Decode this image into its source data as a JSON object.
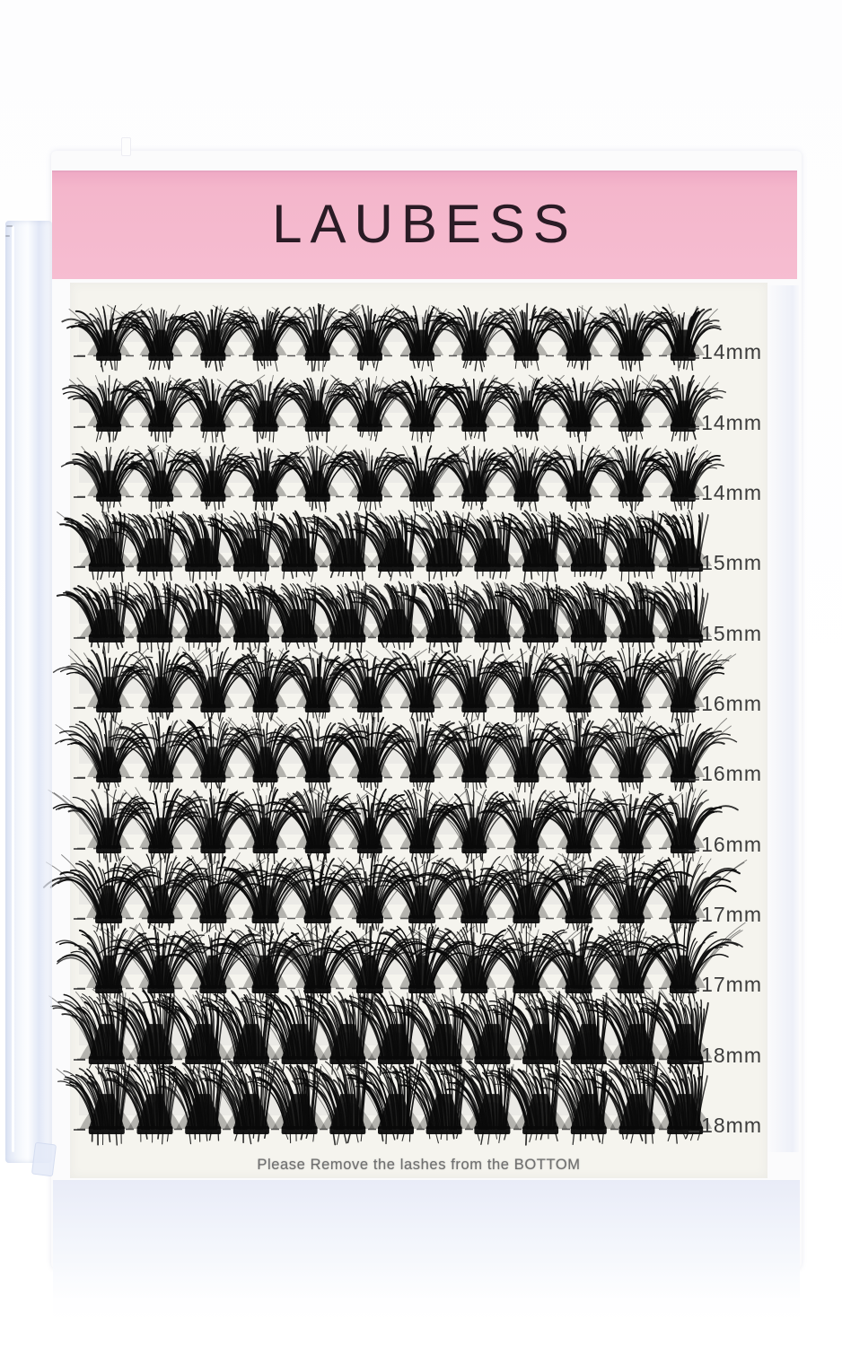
{
  "tray": {
    "brand": "LAUBESS",
    "note": "Please Remove the lashes from the BOTTOM",
    "rows": [
      {
        "label": "14mm",
        "length_mm": 14,
        "clusters": 12,
        "style": "fan"
      },
      {
        "label": "14mm",
        "length_mm": 14,
        "clusters": 12,
        "style": "fan"
      },
      {
        "label": "14mm",
        "length_mm": 14,
        "clusters": 12,
        "style": "fan"
      },
      {
        "label": "15mm",
        "length_mm": 15,
        "clusters": 13,
        "style": "block"
      },
      {
        "label": "15mm",
        "length_mm": 15,
        "clusters": 13,
        "style": "block"
      },
      {
        "label": "16mm",
        "length_mm": 16,
        "clusters": 12,
        "style": "fan"
      },
      {
        "label": "16mm",
        "length_mm": 16,
        "clusters": 12,
        "style": "fan"
      },
      {
        "label": "16mm",
        "length_mm": 16,
        "clusters": 12,
        "style": "fan"
      },
      {
        "label": "17mm",
        "length_mm": 17,
        "clusters": 12,
        "style": "wide"
      },
      {
        "label": "17mm",
        "length_mm": 17,
        "clusters": 12,
        "style": "wide"
      },
      {
        "label": "18mm",
        "length_mm": 18,
        "clusters": 13,
        "style": "block"
      },
      {
        "label": "18mm",
        "length_mm": 18,
        "clusters": 13,
        "style": "block"
      }
    ],
    "colors": {
      "header_pink": "#f4b6cb",
      "brand_text": "#2a1b25",
      "card_bg": "#f5f4ee",
      "lash": "#0a0a0a",
      "label_color": "#3b3b3b",
      "note_color": "#6f6f6f"
    }
  }
}
